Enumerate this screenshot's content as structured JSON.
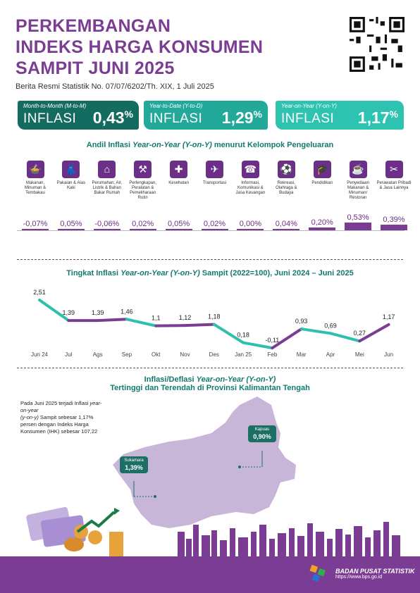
{
  "title_lines": [
    "PERKEMBANGAN",
    "INDEKS HARGA KONSUMEN",
    "SAMPIT JUNI 2025"
  ],
  "subtitle": "Berita Resmi Statistik No. 07/07/6202/Th. XIX, 1 Juli 2025",
  "cards": [
    {
      "small": "Month-to-Month (M-to-M)",
      "label": "INFLASI",
      "value": "0,43",
      "unit": "%",
      "color": "#146c61"
    },
    {
      "small": "Year-to-Date (Y-to-D)",
      "label": "INFLASI",
      "value": "1,29",
      "unit": "%",
      "color": "#22a99a"
    },
    {
      "small": "Year-on-Year (Y-on-Y)",
      "label": "INFLASI",
      "value": "1,17",
      "unit": "%",
      "color": "#2ec3b1"
    }
  ],
  "andil": {
    "title_pre": "Andil Inflasi ",
    "title_em": "Year-on-Year (Y-on-Y)",
    "title_post": " menurut Kelompok Pengeluaran",
    "groups": [
      {
        "label": "Makanan, Minuman & Tembakau",
        "value": "-0,07%",
        "num": -0.07,
        "icon": "food-icon",
        "glyph": "🍲"
      },
      {
        "label": "Pakaian & Alas Kaki",
        "value": "0,05%",
        "num": 0.05,
        "icon": "clothing-icon",
        "glyph": "👗"
      },
      {
        "label": "Perumahan, Air, Listrik & Bahan Bakar Rumah",
        "value": "-0,06%",
        "num": -0.06,
        "icon": "house-icon",
        "glyph": "⌂"
      },
      {
        "label": "Perlengkapan, Peralatan & Pemeliharaan Rutin",
        "value": "0,02%",
        "num": 0.02,
        "icon": "appliance-icon",
        "glyph": "⚒"
      },
      {
        "label": "Kesehatan",
        "value": "0,05%",
        "num": 0.05,
        "icon": "health-icon",
        "glyph": "✚"
      },
      {
        "label": "Transportasi",
        "value": "0,02%",
        "num": 0.02,
        "icon": "plane-icon",
        "glyph": "✈"
      },
      {
        "label": "Informasi, Komunikasi & Jasa Keuangan",
        "value": "0,00%",
        "num": 0.0,
        "icon": "phone-icon",
        "glyph": "☎"
      },
      {
        "label": "Rekreasi, Olahraga & Budaya",
        "value": "0,04%",
        "num": 0.04,
        "icon": "sport-icon",
        "glyph": "⚽"
      },
      {
        "label": "Pendidikan",
        "value": "0,20%",
        "num": 0.2,
        "icon": "graduation-icon",
        "glyph": "🎓"
      },
      {
        "label": "Penyediaan Makanan & Minuman/ Restoran",
        "value": "0,53%",
        "num": 0.53,
        "icon": "restaurant-icon",
        "glyph": "☕"
      },
      {
        "label": "Perawatan Pribadi & Jasa Lainnya",
        "value": "0,39%",
        "num": 0.39,
        "icon": "tools-icon",
        "glyph": "✂"
      }
    ]
  },
  "line_title_pre": "Tingkat Inflasi ",
  "line_title_em": "Year-on-Year (Y-on-Y)",
  "line_title_post": " Sampit (2022=100), Juni 2024 – Juni 2025",
  "chart_data": {
    "type": "line",
    "categories": [
      "Jun 24",
      "Jul",
      "Ags",
      "Sep",
      "Okt",
      "Nov",
      "Des",
      "Jan 25",
      "Feb",
      "Mar",
      "Apr",
      "Mei",
      "Jun"
    ],
    "values": [
      2.51,
      1.39,
      1.39,
      1.46,
      1.1,
      1.12,
      1.18,
      0.18,
      -0.11,
      0.93,
      0.69,
      0.27,
      1.17
    ],
    "labels": [
      "2,51",
      "1,39",
      "1,39",
      "1,46",
      "1,1",
      "1,12",
      "1,18",
      "0,18",
      "-0,11",
      "0,93",
      "0,69",
      "0,27",
      "1,17"
    ],
    "colors": {
      "up": "#7b3d93",
      "down": "#2ebfae"
    }
  },
  "map": {
    "title_pre": "Inflasi/Deflasi ",
    "title_em": "Year-on-Year (Y-on-Y)",
    "title2": "Tertinggi dan Terendah di Provinsi Kalimantan Tengah",
    "note_parts": [
      "Pada Juni 2025 terjadi Inflasi ",
      "year-on-year",
      "(y-on-y)",
      " Sampit sebesar 1,17% persen dengan Indeks Harga Konsumen (IHK) sebesar 107,22"
    ],
    "tags": [
      {
        "name": "Kapuas",
        "value": "0,90%"
      },
      {
        "name": "Sukamara",
        "value": "1,39%"
      }
    ]
  },
  "footer": {
    "org": "BADAN PUSAT STATISTIK",
    "url": "https://www.bps.go.id"
  }
}
